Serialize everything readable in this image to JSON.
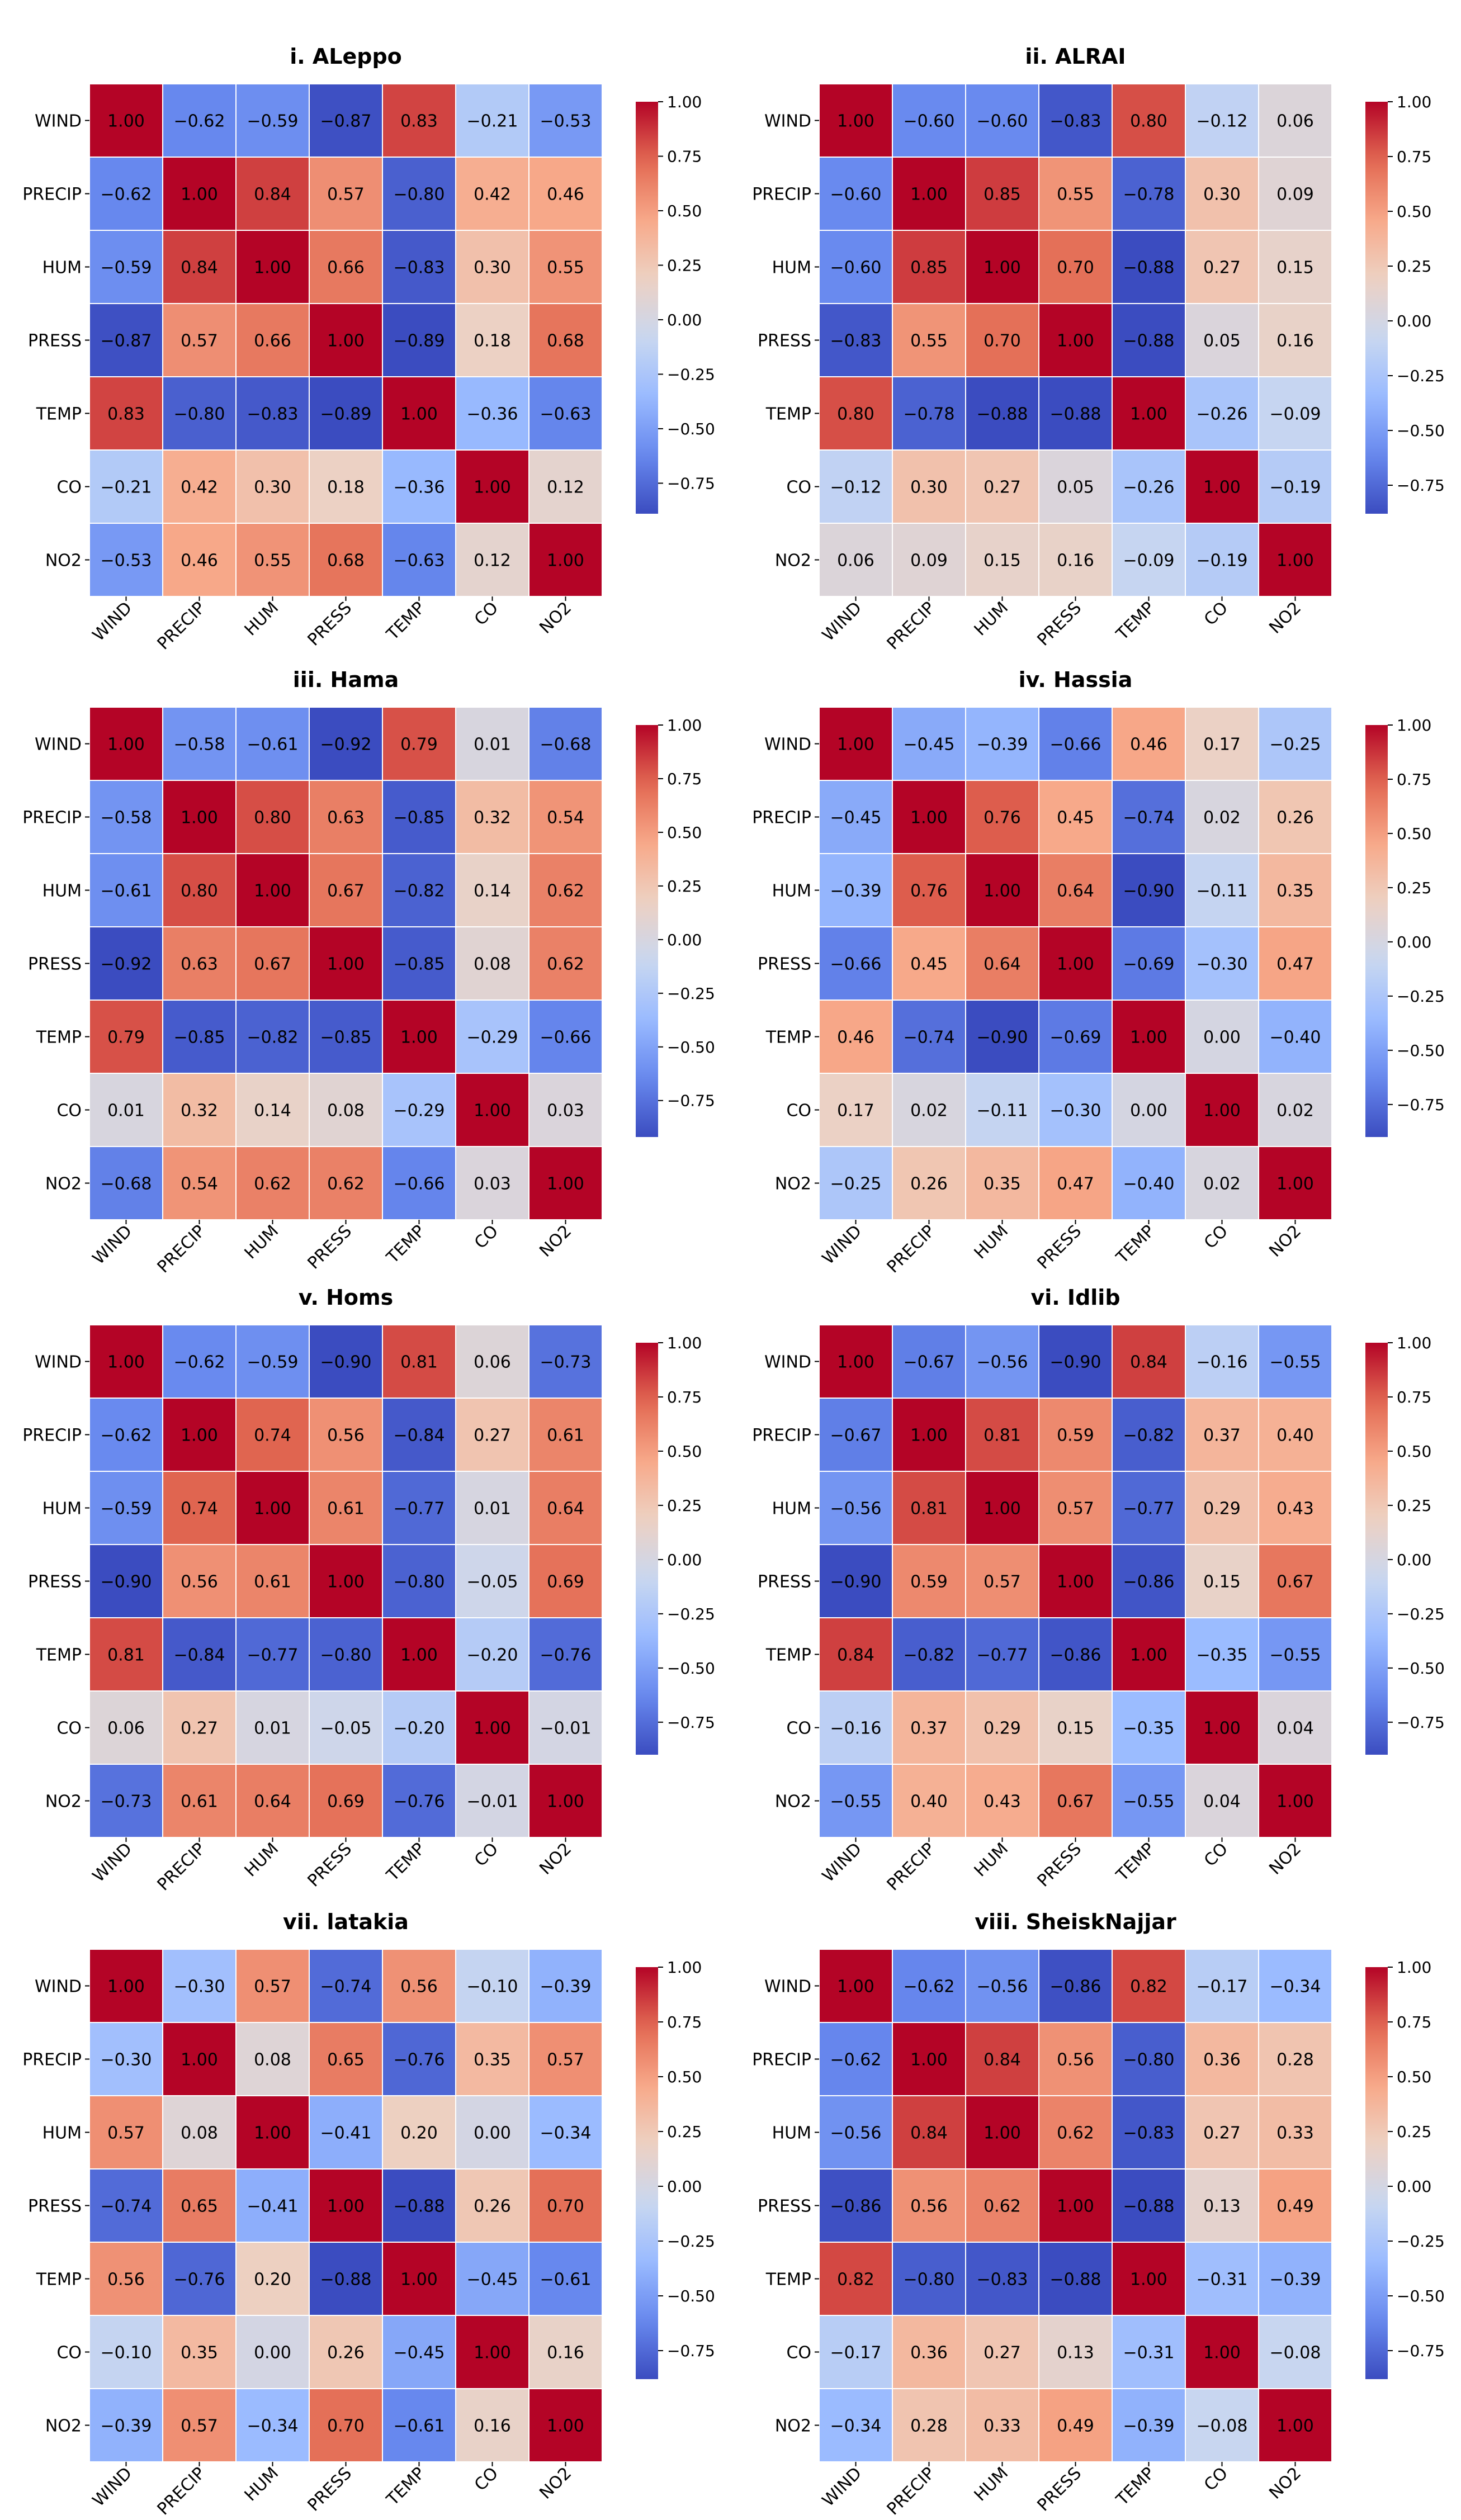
{
  "chart_data": [
    {
      "type": "heatmap",
      "title": "i. ALeppo",
      "labels": [
        "WIND",
        "PRECIP",
        "HUM",
        "PRESS",
        "TEMP",
        "CO",
        "NO2"
      ],
      "matrix": [
        [
          1.0,
          -0.62,
          -0.59,
          -0.87,
          0.83,
          -0.21,
          -0.53
        ],
        [
          -0.62,
          1.0,
          0.84,
          0.57,
          -0.8,
          0.42,
          0.46
        ],
        [
          -0.59,
          0.84,
          1.0,
          0.66,
          -0.83,
          0.3,
          0.55
        ],
        [
          -0.87,
          0.57,
          0.66,
          1.0,
          -0.89,
          0.18,
          0.68
        ],
        [
          0.83,
          -0.8,
          -0.83,
          -0.89,
          1.0,
          -0.36,
          -0.63
        ],
        [
          -0.21,
          0.42,
          0.3,
          0.18,
          -0.36,
          1.0,
          0.12
        ],
        [
          -0.53,
          0.46,
          0.55,
          0.68,
          -0.63,
          0.12,
          1.0
        ]
      ],
      "vmin": -0.89,
      "vmax": 1.0,
      "colorbar_ticks": [
        "1.00",
        "0.75",
        "0.50",
        "0.25",
        "0.00",
        "−0.25",
        "−0.50",
        "−0.75"
      ],
      "colormap": "coolwarm"
    },
    {
      "type": "heatmap",
      "title": "ii. ALRAI",
      "labels": [
        "WIND",
        "PRECIP",
        "HUM",
        "PRESS",
        "TEMP",
        "CO",
        "NO2"
      ],
      "matrix": [
        [
          1.0,
          -0.6,
          -0.6,
          -0.83,
          0.8,
          -0.12,
          0.06
        ],
        [
          -0.6,
          1.0,
          0.85,
          0.55,
          -0.78,
          0.3,
          0.09
        ],
        [
          -0.6,
          0.85,
          1.0,
          0.7,
          -0.88,
          0.27,
          0.15
        ],
        [
          -0.83,
          0.55,
          0.7,
          1.0,
          -0.88,
          0.05,
          0.16
        ],
        [
          0.8,
          -0.78,
          -0.88,
          -0.88,
          1.0,
          -0.26,
          -0.09
        ],
        [
          -0.12,
          0.3,
          0.27,
          0.05,
          -0.26,
          1.0,
          -0.19
        ],
        [
          0.06,
          0.09,
          0.15,
          0.16,
          -0.09,
          -0.19,
          1.0
        ]
      ],
      "vmin": -0.88,
      "vmax": 1.0,
      "colorbar_ticks": [
        "1.00",
        "0.75",
        "0.50",
        "0.25",
        "0.00",
        "−0.25",
        "−0.50",
        "−0.75"
      ],
      "colormap": "coolwarm"
    },
    {
      "type": "heatmap",
      "title": "iii. Hama",
      "labels": [
        "WIND",
        "PRECIP",
        "HUM",
        "PRESS",
        "TEMP",
        "CO",
        "NO2"
      ],
      "matrix": [
        [
          1.0,
          -0.58,
          -0.61,
          -0.92,
          0.79,
          0.01,
          -0.68
        ],
        [
          -0.58,
          1.0,
          0.8,
          0.63,
          -0.85,
          0.32,
          0.54
        ],
        [
          -0.61,
          0.8,
          1.0,
          0.67,
          -0.82,
          0.14,
          0.62
        ],
        [
          -0.92,
          0.63,
          0.67,
          1.0,
          -0.85,
          0.08,
          0.62
        ],
        [
          0.79,
          -0.85,
          -0.82,
          -0.85,
          1.0,
          -0.29,
          -0.66
        ],
        [
          0.01,
          0.32,
          0.14,
          0.08,
          -0.29,
          1.0,
          0.03
        ],
        [
          -0.68,
          0.54,
          0.62,
          0.62,
          -0.66,
          0.03,
          1.0
        ]
      ],
      "vmin": -0.92,
      "vmax": 1.0,
      "colorbar_ticks": [
        "1.00",
        "0.75",
        "0.50",
        "0.25",
        "0.00",
        "−0.25",
        "−0.50",
        "−0.75"
      ],
      "colormap": "coolwarm"
    },
    {
      "type": "heatmap",
      "title": "iv. Hassia",
      "labels": [
        "WIND",
        "PRECIP",
        "HUM",
        "PRESS",
        "TEMP",
        "CO",
        "NO2"
      ],
      "matrix": [
        [
          1.0,
          -0.45,
          -0.39,
          -0.66,
          0.46,
          0.17,
          -0.25
        ],
        [
          -0.45,
          1.0,
          0.76,
          0.45,
          -0.74,
          0.02,
          0.26
        ],
        [
          -0.39,
          0.76,
          1.0,
          0.64,
          -0.9,
          -0.11,
          0.35
        ],
        [
          -0.66,
          0.45,
          0.64,
          1.0,
          -0.69,
          -0.3,
          0.47
        ],
        [
          0.46,
          -0.74,
          -0.9,
          -0.69,
          1.0,
          0.0,
          -0.4
        ],
        [
          0.17,
          0.02,
          -0.11,
          -0.3,
          0.0,
          1.0,
          0.02
        ],
        [
          -0.25,
          0.26,
          0.35,
          0.47,
          -0.4,
          0.02,
          1.0
        ]
      ],
      "vmin": -0.9,
      "vmax": 1.0,
      "colorbar_ticks": [
        "1.00",
        "0.75",
        "0.50",
        "0.25",
        "0.00",
        "−0.25",
        "−0.50",
        "−0.75"
      ],
      "colormap": "coolwarm"
    },
    {
      "type": "heatmap",
      "title": "v. Homs",
      "labels": [
        "WIND",
        "PRECIP",
        "HUM",
        "PRESS",
        "TEMP",
        "CO",
        "NO2"
      ],
      "matrix": [
        [
          1.0,
          -0.62,
          -0.59,
          -0.9,
          0.81,
          0.06,
          -0.73
        ],
        [
          -0.62,
          1.0,
          0.74,
          0.56,
          -0.84,
          0.27,
          0.61
        ],
        [
          -0.59,
          0.74,
          1.0,
          0.61,
          -0.77,
          0.01,
          0.64
        ],
        [
          -0.9,
          0.56,
          0.61,
          1.0,
          -0.8,
          -0.05,
          0.69
        ],
        [
          0.81,
          -0.84,
          -0.77,
          -0.8,
          1.0,
          -0.2,
          -0.76
        ],
        [
          0.06,
          0.27,
          0.01,
          -0.05,
          -0.2,
          1.0,
          -0.01
        ],
        [
          -0.73,
          0.61,
          0.64,
          0.69,
          -0.76,
          -0.01,
          1.0
        ]
      ],
      "vmin": -0.9,
      "vmax": 1.0,
      "colorbar_ticks": [
        "1.00",
        "0.75",
        "0.50",
        "0.25",
        "0.00",
        "−0.25",
        "−0.50",
        "−0.75"
      ],
      "colormap": "coolwarm"
    },
    {
      "type": "heatmap",
      "title": "vi. Idlib",
      "labels": [
        "WIND",
        "PRECIP",
        "HUM",
        "PRESS",
        "TEMP",
        "CO",
        "NO2"
      ],
      "matrix": [
        [
          1.0,
          -0.67,
          -0.56,
          -0.9,
          0.84,
          -0.16,
          -0.55
        ],
        [
          -0.67,
          1.0,
          0.81,
          0.59,
          -0.82,
          0.37,
          0.4
        ],
        [
          -0.56,
          0.81,
          1.0,
          0.57,
          -0.77,
          0.29,
          0.43
        ],
        [
          -0.9,
          0.59,
          0.57,
          1.0,
          -0.86,
          0.15,
          0.67
        ],
        [
          0.84,
          -0.82,
          -0.77,
          -0.86,
          1.0,
          -0.35,
          -0.55
        ],
        [
          -0.16,
          0.37,
          0.29,
          0.15,
          -0.35,
          1.0,
          0.04
        ],
        [
          -0.55,
          0.4,
          0.43,
          0.67,
          -0.55,
          0.04,
          1.0
        ]
      ],
      "vmin": -0.9,
      "vmax": 1.0,
      "colorbar_ticks": [
        "1.00",
        "0.75",
        "0.50",
        "0.25",
        "0.00",
        "−0.25",
        "−0.50",
        "−0.75"
      ],
      "colormap": "coolwarm"
    },
    {
      "type": "heatmap",
      "title": "vii. latakia",
      "labels": [
        "WIND",
        "PRECIP",
        "HUM",
        "PRESS",
        "TEMP",
        "CO",
        "NO2"
      ],
      "matrix": [
        [
          1.0,
          -0.3,
          0.57,
          -0.74,
          0.56,
          -0.1,
          -0.39
        ],
        [
          -0.3,
          1.0,
          0.08,
          0.65,
          -0.76,
          0.35,
          0.57
        ],
        [
          0.57,
          0.08,
          1.0,
          -0.41,
          0.2,
          0.0,
          -0.34
        ],
        [
          -0.74,
          0.65,
          -0.41,
          1.0,
          -0.88,
          0.26,
          0.7
        ],
        [
          0.56,
          -0.76,
          0.2,
          -0.88,
          1.0,
          -0.45,
          -0.61
        ],
        [
          -0.1,
          0.35,
          0.0,
          0.26,
          -0.45,
          1.0,
          0.16
        ],
        [
          -0.39,
          0.57,
          -0.34,
          0.7,
          -0.61,
          0.16,
          1.0
        ]
      ],
      "vmin": -0.88,
      "vmax": 1.0,
      "colorbar_ticks": [
        "1.00",
        "0.75",
        "0.50",
        "0.25",
        "0.00",
        "−0.25",
        "−0.50",
        "−0.75"
      ],
      "colormap": "coolwarm"
    },
    {
      "type": "heatmap",
      "title": "viii. SheiskNajjar",
      "labels": [
        "WIND",
        "PRECIP",
        "HUM",
        "PRESS",
        "TEMP",
        "CO",
        "NO2"
      ],
      "matrix": [
        [
          1.0,
          -0.62,
          -0.56,
          -0.86,
          0.82,
          -0.17,
          -0.34
        ],
        [
          -0.62,
          1.0,
          0.84,
          0.56,
          -0.8,
          0.36,
          0.28
        ],
        [
          -0.56,
          0.84,
          1.0,
          0.62,
          -0.83,
          0.27,
          0.33
        ],
        [
          -0.86,
          0.56,
          0.62,
          1.0,
          -0.88,
          0.13,
          0.49
        ],
        [
          0.82,
          -0.8,
          -0.83,
          -0.88,
          1.0,
          -0.31,
          -0.39
        ],
        [
          -0.17,
          0.36,
          0.27,
          0.13,
          -0.31,
          1.0,
          -0.08
        ],
        [
          -0.34,
          0.28,
          0.33,
          0.49,
          -0.39,
          -0.08,
          1.0
        ]
      ],
      "vmin": -0.88,
      "vmax": 1.0,
      "colorbar_ticks": [
        "1.00",
        "0.75",
        "0.50",
        "0.25",
        "0.00",
        "−0.25",
        "−0.50",
        "−0.75"
      ],
      "colormap": "coolwarm"
    }
  ],
  "colormap_stops": [
    "#3b4cc0",
    "#6788ee",
    "#9abbff",
    "#c9d7f0",
    "#edd1c2",
    "#f7a889",
    "#e26952",
    "#b40426"
  ]
}
